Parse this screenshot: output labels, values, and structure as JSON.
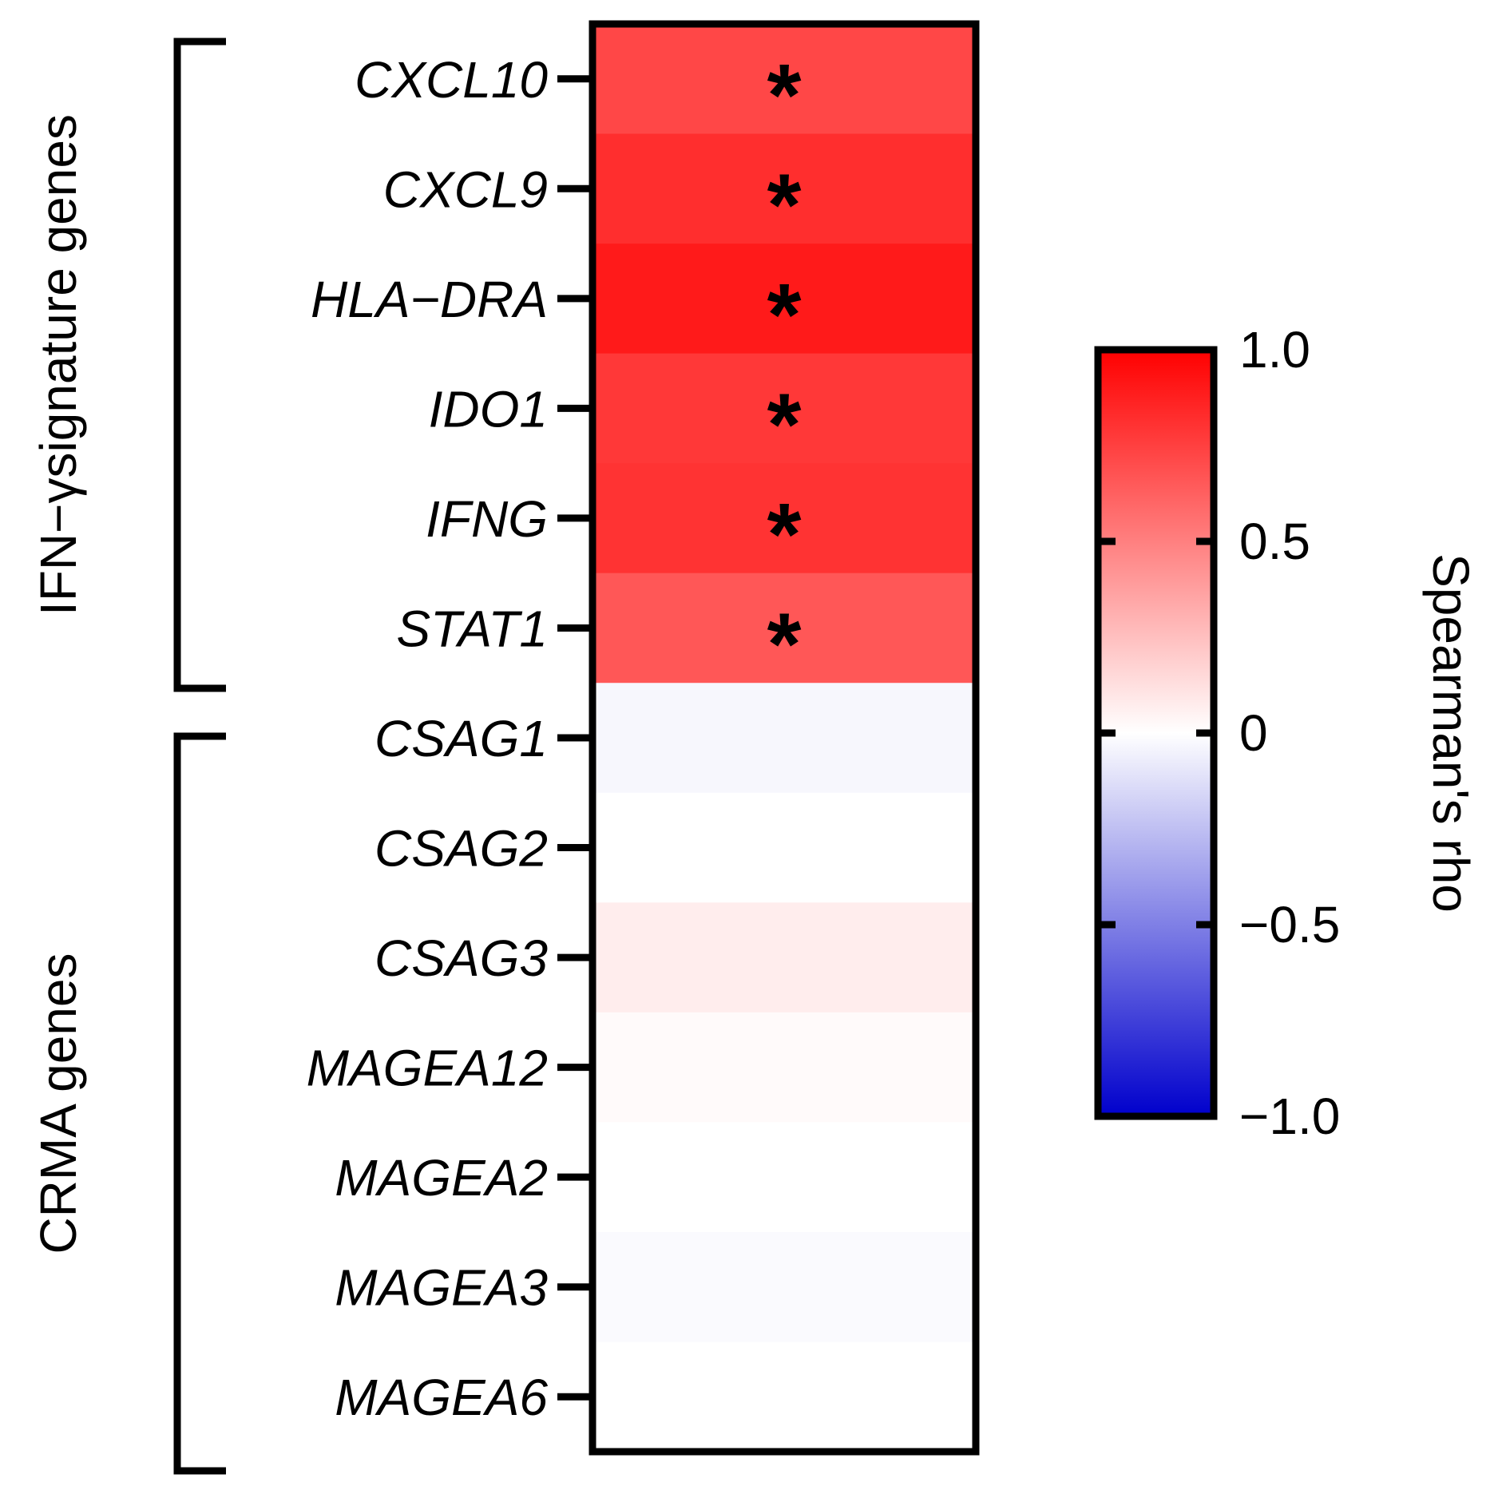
{
  "chart_data": {
    "type": "heatmap",
    "rows": [
      "CXCL10",
      "CXCL9",
      "HLA−DRA",
      "IDO1",
      "IFNG",
      "STAT1",
      "CSAG1",
      "CSAG2",
      "CSAG3",
      "MAGEA12",
      "MAGEA2",
      "MAGEA3",
      "MAGEA6"
    ],
    "values": [
      0.72,
      0.82,
      0.9,
      0.78,
      0.8,
      0.66,
      -0.03,
      0.0,
      0.07,
      0.02,
      0.0,
      -0.02,
      0.0
    ],
    "significance": [
      "*",
      "*",
      "*",
      "*",
      "*",
      "*",
      "",
      "",
      "",
      "",
      "",
      "",
      ""
    ],
    "groups": [
      {
        "label": "IFN−γsignature genes",
        "start": 0,
        "end": 5
      },
      {
        "label": "CRMA genes",
        "start": 6,
        "end": 12
      }
    ],
    "colorbar": {
      "title": "Spearman's rho",
      "range": [
        -1.0,
        1.0
      ],
      "ticks": [
        1.0,
        0.5,
        0,
        -0.5,
        -1.0
      ],
      "tick_labels": [
        "1.0",
        "0.5",
        "0",
        "−0.5",
        "−1.0"
      ],
      "colors": {
        "low": "#0000cc",
        "mid": "#ffffff",
        "high": "#ff0000"
      }
    }
  }
}
